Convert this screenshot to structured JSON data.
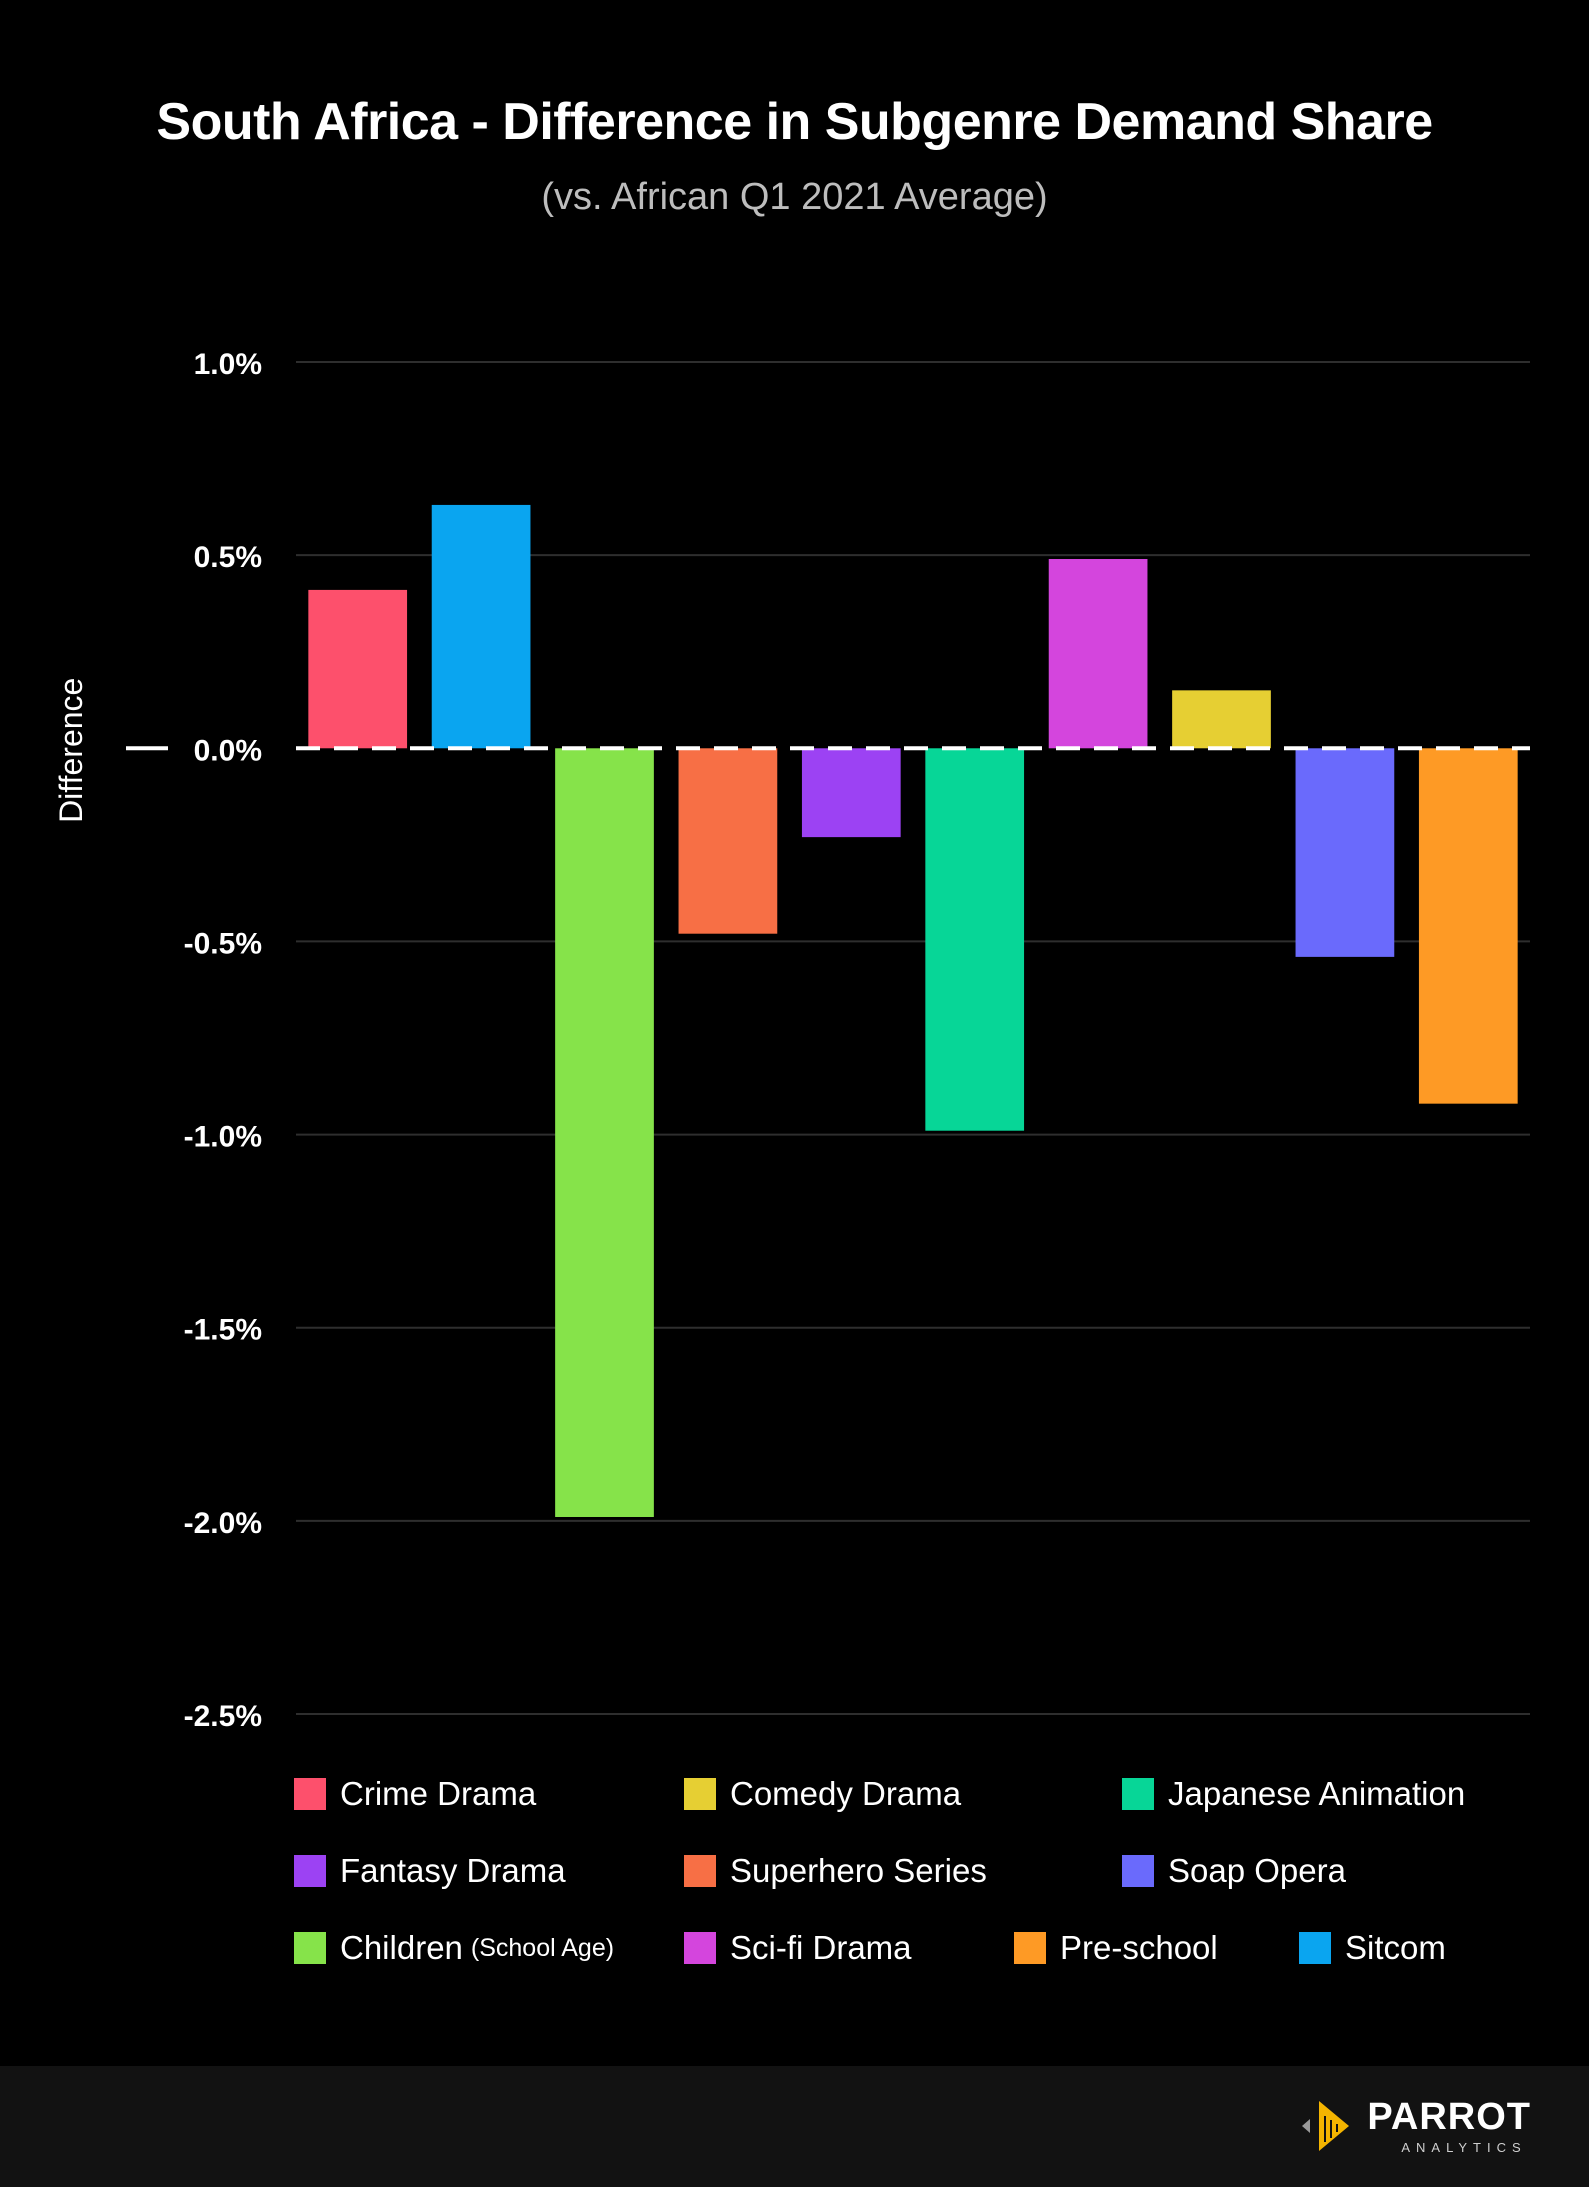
{
  "title": "South Africa - Difference in Subgenre Demand Share",
  "subtitle": "(vs. African Q1 2021 Average)",
  "chart_data": {
    "type": "bar",
    "title": "South Africa - Difference in Subgenre Demand Share",
    "subtitle": "(vs. African Q1 2021 Average)",
    "xlabel": "",
    "ylabel": "Difference",
    "ylim": [
      -2.5,
      1.0
    ],
    "yticks": [
      1.0,
      0.5,
      0.0,
      -0.5,
      -1.0,
      -1.5,
      -2.0,
      -2.5
    ],
    "ytick_labels": [
      "1.0%",
      "0.5%",
      "0.0%",
      "-0.5%",
      "-1.0%",
      "-1.5%",
      "-2.0%",
      "-2.5%"
    ],
    "grid": true,
    "zero_line": "dashed",
    "legend_position": "bottom",
    "categories": [
      "Crime Drama",
      "Sitcom",
      "Children (School Age)",
      "Superhero Series",
      "Fantasy Drama",
      "Japanese Animation",
      "Sci-fi Drama",
      "Comedy Drama",
      "Soap Opera",
      "Pre-school"
    ],
    "values": [
      0.41,
      0.63,
      -1.99,
      -0.48,
      -0.23,
      -0.99,
      0.49,
      0.15,
      -0.54,
      -0.92
    ],
    "colors": [
      "#fd506c",
      "#0aa5f0",
      "#86e34a",
      "#f76f45",
      "#9c42f3",
      "#07d697",
      "#d445dd",
      "#e6cf33",
      "#6a6afc",
      "#fe9a25"
    ]
  },
  "legend": [
    {
      "label": "Crime Drama",
      "color": "#fd506c"
    },
    {
      "label": "Comedy Drama",
      "color": "#e6cf33"
    },
    {
      "label": "Japanese Animation",
      "color": "#07d697"
    },
    {
      "label": "Fantasy Drama",
      "color": "#9c42f3"
    },
    {
      "label": "Superhero Series",
      "color": "#f76f45"
    },
    {
      "label": "Soap Opera",
      "color": "#6a6afc"
    },
    {
      "label": "Children",
      "sublabel": "(School Age)",
      "color": "#86e34a"
    },
    {
      "label": "Sci-fi Drama",
      "color": "#d445dd"
    },
    {
      "label": "Pre-school",
      "color": "#fe9a25"
    },
    {
      "label": "Sitcom",
      "color": "#0aa5f0"
    }
  ],
  "footer": {
    "brand": "PARROT",
    "brand_sub": "ANALYTICS",
    "brand_color": "#f4b400"
  }
}
